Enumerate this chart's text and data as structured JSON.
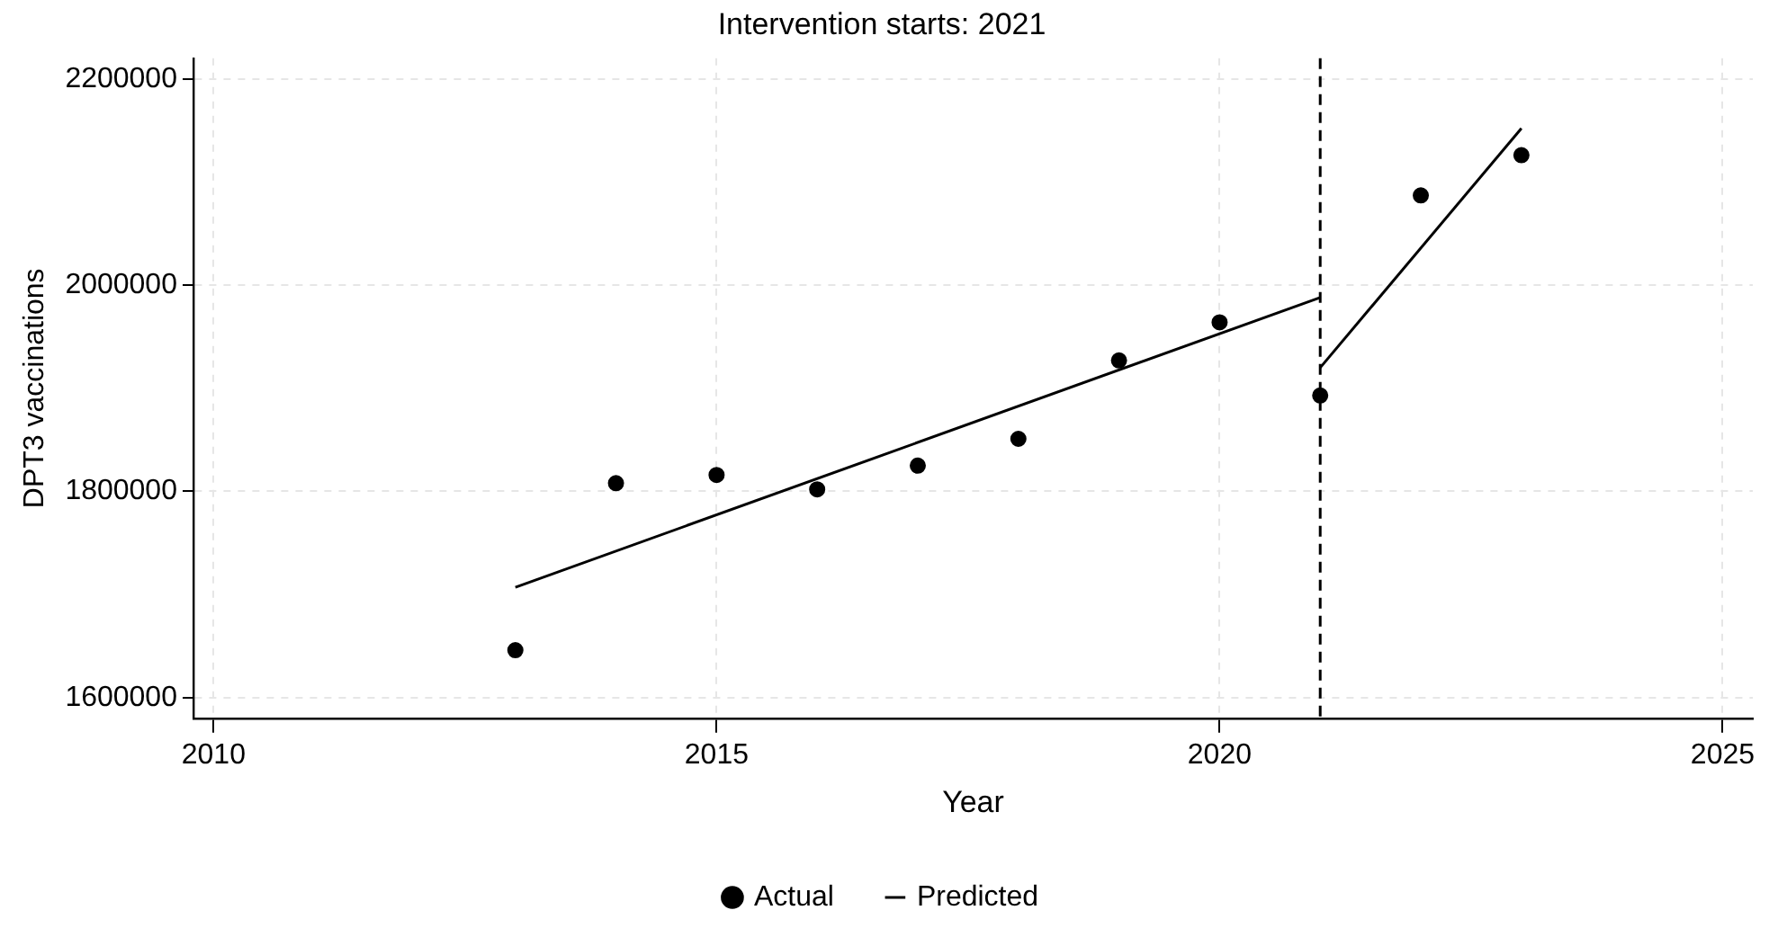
{
  "chart_data": {
    "type": "scatter",
    "title": "Intervention starts: 2021",
    "xlabel": "Year",
    "ylabel": "DPT3 vaccinations",
    "xlim": [
      2009.8,
      2025.3
    ],
    "xticks": [
      2010,
      2015,
      2020,
      2025
    ],
    "ylim": [
      1580000,
      2220000
    ],
    "yticks": [
      1600000,
      1800000,
      2000000,
      2200000
    ],
    "grid": true,
    "legend": "bottom",
    "ref_lines": [
      {
        "axis": "x",
        "value": 2021,
        "line_style": "dashed",
        "color": "#000000"
      }
    ],
    "series": [
      {
        "name": "Actual",
        "marker": "circle",
        "color": "#000000",
        "x": [
          2013,
          2014,
          2015,
          2016,
          2017,
          2018,
          2019,
          2020,
          2021,
          2022,
          2023
        ],
        "values": [
          1646000,
          1808000,
          1816000,
          1802000,
          1825000,
          1851000,
          1927000,
          1964000,
          1893000,
          2087000,
          2126000
        ]
      },
      {
        "name": "Predicted",
        "type": "line",
        "marker": "none",
        "line_style": "solid",
        "color": "#000000",
        "x": [
          2013,
          2021
        ],
        "values": [
          1707000,
          1988000
        ]
      },
      {
        "type": "line",
        "marker": "none",
        "line_style": "solid",
        "color": "#000000",
        "x": [
          2021,
          2023
        ],
        "values": [
          1920000,
          2152000
        ]
      }
    ]
  }
}
